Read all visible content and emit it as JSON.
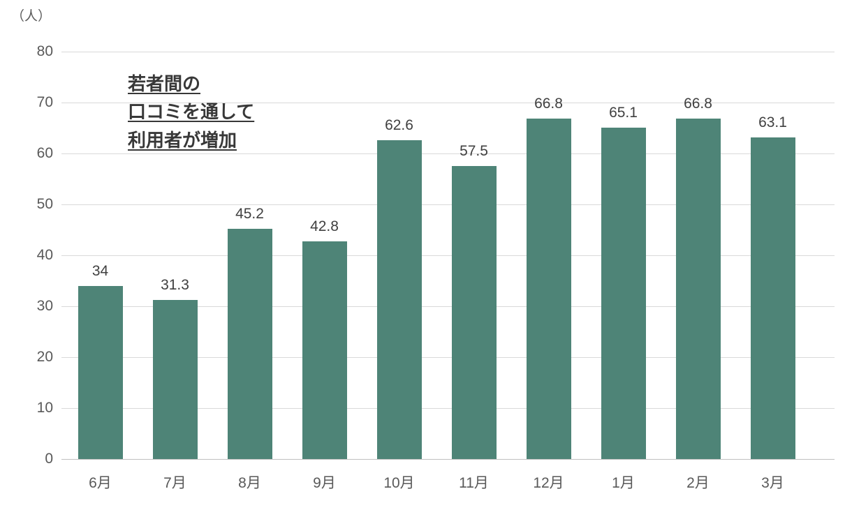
{
  "chart_data": {
    "type": "bar",
    "title": "",
    "ylabel": "（人）",
    "xlabel": "",
    "categories": [
      "6月",
      "7月",
      "8月",
      "9月",
      "10月",
      "11月",
      "12月",
      "1月",
      "2月",
      "3月"
    ],
    "values": [
      34,
      31.3,
      45.2,
      42.8,
      62.6,
      57.5,
      66.8,
      65.1,
      66.8,
      63.1
    ],
    "value_labels": [
      "34",
      "31.3",
      "45.2",
      "42.8",
      "62.6",
      "57.5",
      "66.8",
      "65.1",
      "66.8",
      "63.1"
    ],
    "ylim": [
      0,
      80
    ],
    "yticks": [
      0,
      10,
      20,
      30,
      40,
      50,
      60,
      70,
      80
    ],
    "grid": true,
    "legend": "none",
    "annotation": {
      "lines": [
        "若者間の",
        "口コミを通して",
        "利用者が増加"
      ]
    }
  },
  "colors": {
    "bar": "#4e8477",
    "grid": "#d9d9d9",
    "baseline": "#bfbfbf",
    "axis_text": "#595959",
    "value_text": "#404040",
    "annotation_text": "#383838",
    "background": "#ffffff"
  }
}
